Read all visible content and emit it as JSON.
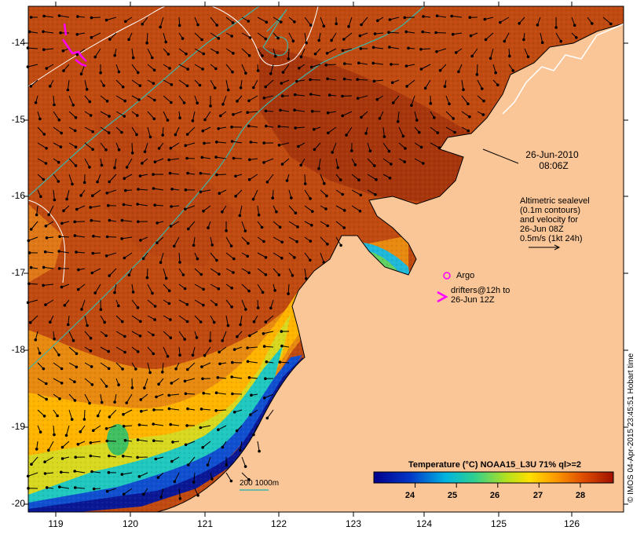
{
  "map": {
    "y_ticks": [
      "-14",
      "-15",
      "-16",
      "-17",
      "-18",
      "-19",
      "-20"
    ],
    "x_ticks": [
      "119",
      "120",
      "121",
      "122",
      "123",
      "124",
      "125",
      "126"
    ],
    "date_label": "26-Jun-2010",
    "time_label": "08:06Z",
    "legend_lines": [
      "Altimetric sealevel",
      "(0.1m contours)",
      "and velocity for",
      "26-Jun 08Z",
      "0.5m/s (1kt 24h)"
    ],
    "argo_label": "Argo",
    "drifters_lines": [
      "drifters@12h to",
      "26-Jun 12Z"
    ],
    "scale_label": "200  1000m",
    "colorbar_title": "Temperature (°C) NOAA15_L3U 71% ql>=2",
    "colorbar_ticks": [
      "24",
      "25",
      "26",
      "27",
      "28"
    ],
    "colorbar_range": [
      23.0,
      28.8
    ],
    "credit": "© IMOS 04-Apr-2015 23:45:51 Hobart time",
    "colors": {
      "land": "#fbc697",
      "sst_warm": "#c04a10",
      "sst_mid": "#ffb000",
      "sst_cool": "#0a1896",
      "isobath": "#3cb5a8",
      "contour": "#ffffff",
      "drifter": "#ff00ff"
    }
  }
}
